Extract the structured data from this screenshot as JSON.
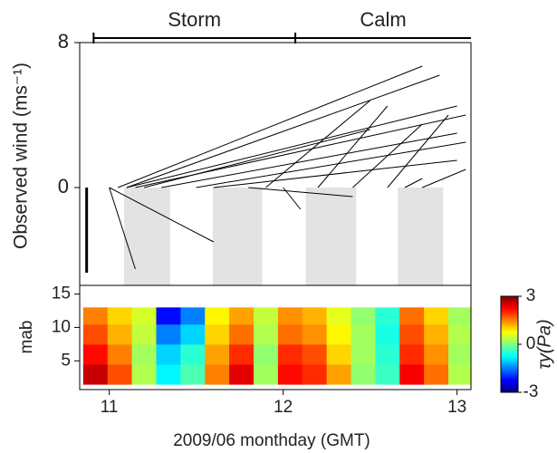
{
  "chart_data": [
    {
      "type": "stick",
      "ylabel": "Observed wind (ms⁻¹)",
      "ylim": [
        -5.4,
        8
      ],
      "yticks": [
        0,
        8
      ],
      "xlim": [
        10.83,
        13.08
      ],
      "periods": [
        {
          "label": "Storm",
          "start": 10.91,
          "end": 12.07
        },
        {
          "label": "Calm",
          "start": 12.07,
          "end": 13.08
        }
      ],
      "bands": [
        {
          "start": 11.085,
          "end": 11.35
        },
        {
          "start": 11.595,
          "end": 11.88
        },
        {
          "start": 12.13,
          "end": 12.42
        },
        {
          "start": 12.66,
          "end": 12.92
        }
      ],
      "sticks": {
        "x": [
          10.87,
          11.0,
          11.0,
          11.05,
          11.1,
          11.1,
          11.15,
          11.2,
          11.3,
          11.5,
          11.6,
          11.8,
          12.0,
          12.2,
          12.4,
          12.6,
          12.7,
          12.8,
          11.9
        ],
        "x_end": [
          10.87,
          11.15,
          11.6,
          12.8,
          12.9,
          13.0,
          13.05,
          12.5,
          13.0,
          13.05,
          13.0,
          12.4,
          12.1,
          12.6,
          12.8,
          12.95,
          12.8,
          13.05,
          12.5
        ],
        "y_end": [
          -4.7,
          -4.5,
          -3.0,
          6.7,
          6.2,
          4.5,
          4.0,
          3.2,
          3.0,
          2.5,
          1.5,
          -0.5,
          -1.2,
          4.5,
          3.5,
          4.0,
          0.5,
          1.0,
          4.8
        ]
      },
      "color": "#000000",
      "band_color": "#e3e3e3"
    },
    {
      "type": "heatmap",
      "ylabel": "mab",
      "xlabel": "2009/06 monthday (GMT)",
      "xlim": [
        10.83,
        13.08
      ],
      "xticks": [
        11,
        12,
        13
      ],
      "ylim": [
        0.7,
        16.3
      ],
      "yticks": [
        5,
        10,
        15
      ],
      "x_edges": [
        10.85,
        10.99,
        11.13,
        11.27,
        11.41,
        11.55,
        11.69,
        11.83,
        11.97,
        12.11,
        12.25,
        12.39,
        12.53,
        12.67,
        12.81,
        12.95,
        13.09
      ],
      "mab_edges": [
        1.5,
        4.5,
        7.5,
        10.5,
        13
      ],
      "values": [
        [
          2.6,
          1.8,
          0.3,
          -0.8,
          -0.3,
          1.5,
          2.4,
          0.2,
          2.2,
          2.0,
          1.3,
          0.1,
          -0.4,
          2.3,
          1.6,
          0.3
        ],
        [
          2.2,
          1.5,
          0.2,
          -1.0,
          -0.5,
          1.3,
          2.0,
          0.1,
          2.0,
          1.8,
          1.0,
          0.2,
          -0.5,
          2.0,
          1.4,
          0.2
        ],
        [
          1.8,
          1.2,
          0.4,
          -1.5,
          -1.0,
          1.0,
          1.6,
          0.3,
          1.6,
          1.4,
          0.8,
          0.2,
          -0.6,
          1.8,
          1.2,
          0.3
        ],
        [
          1.5,
          1.0,
          0.5,
          -2.2,
          -1.5,
          0.8,
          1.3,
          0.4,
          1.4,
          1.2,
          0.6,
          0.1,
          -0.5,
          1.6,
          1.0,
          0.2
        ]
      ],
      "clim": [
        -3,
        3
      ],
      "cticks": [
        -3,
        0,
        3
      ],
      "clabel": "τy(Pa)",
      "colormap": "jet"
    }
  ]
}
